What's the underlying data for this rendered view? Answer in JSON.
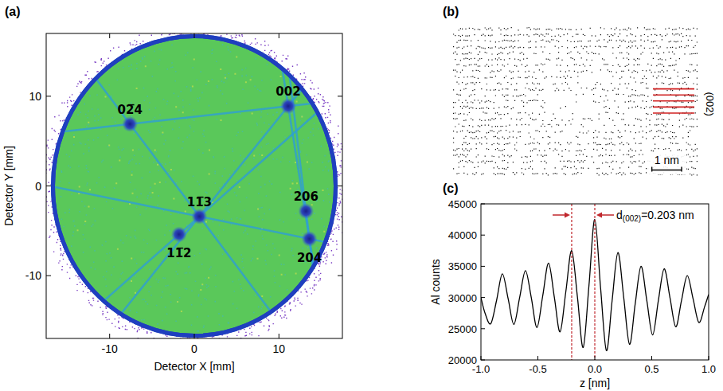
{
  "chart_data": [
    {
      "type": "detector_map",
      "panel": "(a)",
      "x_label": "Detector X [mm]",
      "y_label": "Detector Y [mm]",
      "xlim": [
        -17.5,
        17.5
      ],
      "ylim": [
        -17,
        17
      ],
      "xticks": [
        -10,
        0,
        10
      ],
      "yticks": [
        -10,
        0,
        10
      ],
      "detector_radius": 16.7,
      "color": "#5cc85c",
      "poles": [
        {
          "label": "002",
          "x": 11.1,
          "y": 8.9
        },
        {
          "label": "02̅4",
          "x": -7.6,
          "y": 6.9
        },
        {
          "label": "11̅3",
          "x": 0.6,
          "y": -3.4
        },
        {
          "label": "11̅2",
          "x": -1.8,
          "y": -5.4
        },
        {
          "label": "206",
          "x": 13.2,
          "y": -2.8
        },
        {
          "label": "204",
          "x": 13.6,
          "y": -5.9
        }
      ]
    },
    {
      "type": "atom_map",
      "panel": "(b)",
      "width_nm": 8.3,
      "height_nm": 5.1,
      "plane_spacing": 0.203,
      "plane_label": "(002)",
      "scale_bar": {
        "value": 1,
        "label": "1 nm"
      }
    },
    {
      "type": "line",
      "panel": "(c)",
      "x_label": "z [nm]",
      "y_label": "Al counts",
      "xlim": [
        -1,
        1
      ],
      "ylim": [
        20000,
        45000
      ],
      "xticks": [
        {
          "value": -1,
          "label": "-1.0"
        },
        -0.5,
        {
          "value": 0,
          "label": "0.0"
        },
        0.5,
        {
          "value": 1,
          "label": "1.0"
        }
      ],
      "yticks": [
        20000,
        25000,
        30000,
        35000,
        40000,
        45000
      ],
      "color": "#000000",
      "line_style": "solid",
      "x": [
        -1.0,
        -0.964,
        -0.914,
        -0.863,
        -0.812,
        -0.761,
        -0.711,
        -0.66,
        -0.609,
        -0.558,
        -0.508,
        -0.457,
        -0.406,
        -0.355,
        -0.305,
        -0.254,
        -0.203,
        -0.152,
        -0.102,
        -0.051,
        0.0,
        0.051,
        0.102,
        0.152,
        0.203,
        0.254,
        0.305,
        0.355,
        0.406,
        0.457,
        0.508,
        0.558,
        0.609,
        0.66,
        0.711,
        0.761,
        0.812,
        0.863,
        0.914,
        0.964,
        1.0
      ],
      "values": [
        30000,
        27500,
        25800,
        29500,
        33800,
        29800,
        25700,
        30000,
        34300,
        30000,
        25200,
        30300,
        35500,
        30000,
        24500,
        31000,
        37500,
        30000,
        22000,
        32000,
        42500,
        31500,
        21500,
        29500,
        37200,
        30000,
        22500,
        29000,
        35000,
        29500,
        24000,
        29500,
        34600,
        30000,
        25300,
        29500,
        33500,
        29800,
        26000,
        28500,
        30500
      ],
      "annotations": [
        {
          "x": [
            -0.203,
            0.0
          ],
          "base": "d",
          "sub": "(002)",
          "rest": "=0.203 nm",
          "color": "#c0272d"
        }
      ]
    }
  ]
}
